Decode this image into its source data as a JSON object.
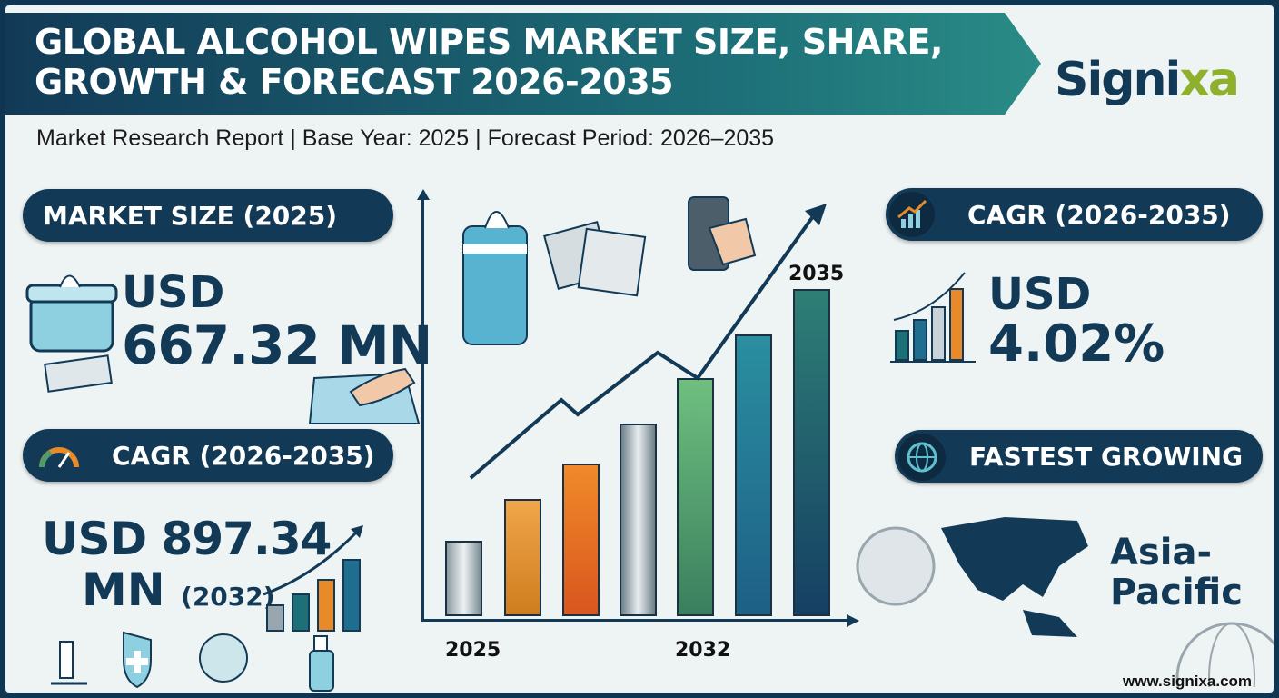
{
  "header": {
    "title_line1": "GLOBAL ALCOHOL WIPES MARKET SIZE, SHARE,",
    "title_line2": "GROWTH & FORECAST 2026-2035",
    "subtitle": "Market Research Report | Base Year: 2025 | Forecast Period: 2026–2035",
    "logo_main": "Signi",
    "logo_accent": "xa"
  },
  "market_size": {
    "label": "MARKET SIZE (2025)",
    "currency": "USD",
    "value": "667.32 MN"
  },
  "cagr_left": {
    "label": "CAGR (2026-2035)",
    "value": "USD 897.34",
    "unit": "MN",
    "year": "(2032)"
  },
  "chart": {
    "x_labels": [
      "2025",
      "2032",
      "2035"
    ]
  },
  "cagr_right": {
    "label": "CAGR (2026-2035)",
    "currency": "USD",
    "value": "4.02%"
  },
  "fastest": {
    "label": "FASTEST GROWING",
    "region_line1": "Asia-",
    "region_line2": "Pacific"
  },
  "footer": {
    "url": "www.signixa.com"
  },
  "colors": {
    "navy": "#123a57",
    "teal": "#1d6f78",
    "orange": "#e8892a",
    "green": "#4f9b6a"
  }
}
